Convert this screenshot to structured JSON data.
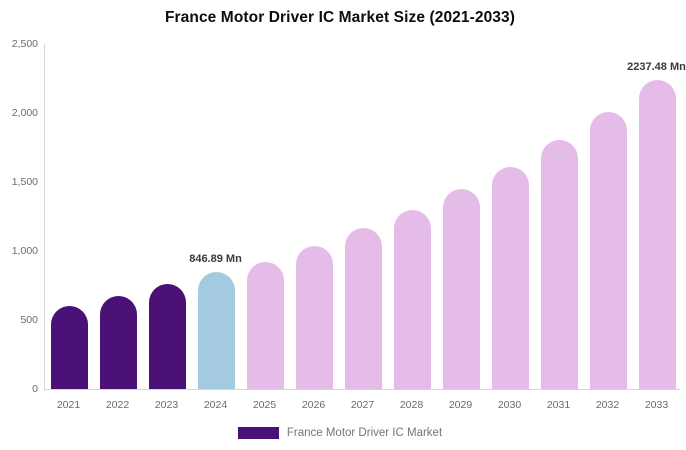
{
  "chart_data": {
    "type": "bar",
    "title": "France Motor Driver IC Market Size (2021-2033)",
    "categories": [
      "2021",
      "2022",
      "2023",
      "2024",
      "2025",
      "2026",
      "2027",
      "2028",
      "2029",
      "2030",
      "2031",
      "2032",
      "2033"
    ],
    "values": [
      600,
      675,
      760,
      846.89,
      920,
      1035,
      1165,
      1295,
      1450,
      1610,
      1805,
      2005,
      2237.48
    ],
    "unit": "Mn",
    "ylim": [
      0,
      2500
    ],
    "yticks": [
      0,
      500,
      1000,
      1500,
      2000,
      2500
    ],
    "grid": false,
    "bar_colors": [
      "#4A1277",
      "#4A1277",
      "#4A1277",
      "#A4CAE2",
      "#E5BCE8",
      "#E5BCE8",
      "#E5BCE8",
      "#E5BCE8",
      "#E5BCE8",
      "#E5BCE8",
      "#E5BCE8",
      "#E5BCE8",
      "#E5BCE8"
    ],
    "annotations": [
      {
        "category": "2024",
        "text": "846.89 Mn"
      },
      {
        "category": "2033",
        "text": "2237.48 Mn"
      }
    ],
    "legend": {
      "position": "bottom",
      "label": "France Motor Driver IC Market",
      "swatch_color": "#4A1277"
    },
    "axis_color": "#d6d6d6",
    "tick_label_color": "#6b6b6b",
    "value_label_color": "#3a3a3a"
  }
}
